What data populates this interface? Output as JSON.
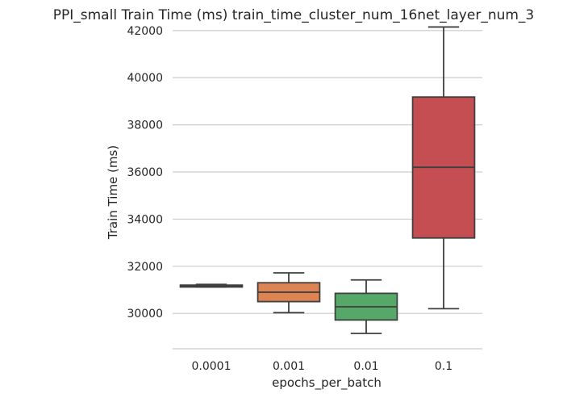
{
  "chart_data": {
    "type": "box",
    "title": "PPI_small Train Time (ms) train_time_cluster_num_16net_layer_num_3",
    "xlabel": "epochs_per_batch",
    "ylabel": "Train Time (ms)",
    "ylim": [
      28500,
      42200
    ],
    "yticks": [
      30000,
      32000,
      34000,
      36000,
      38000,
      40000,
      42000
    ],
    "grid": true,
    "categories": [
      "0.0001",
      "0.001",
      "0.01",
      "0.1"
    ],
    "boxes": [
      {
        "category": "0.0001",
        "whisker_low": 31120,
        "q1": 31120,
        "median": 31170,
        "q3": 31200,
        "whisker_high": 31230,
        "color": "#4c72b0"
      },
      {
        "category": "0.001",
        "whisker_low": 30030,
        "q1": 30500,
        "median": 30900,
        "q3": 31300,
        "whisker_high": 31720,
        "color": "#dd8452"
      },
      {
        "category": "0.01",
        "whisker_low": 29150,
        "q1": 29720,
        "median": 30280,
        "q3": 30850,
        "whisker_high": 31420,
        "color": "#55a868"
      },
      {
        "category": "0.1",
        "whisker_low": 30200,
        "q1": 33200,
        "median": 36200,
        "q3": 39180,
        "whisker_high": 42150,
        "color": "#c44e52"
      }
    ]
  }
}
